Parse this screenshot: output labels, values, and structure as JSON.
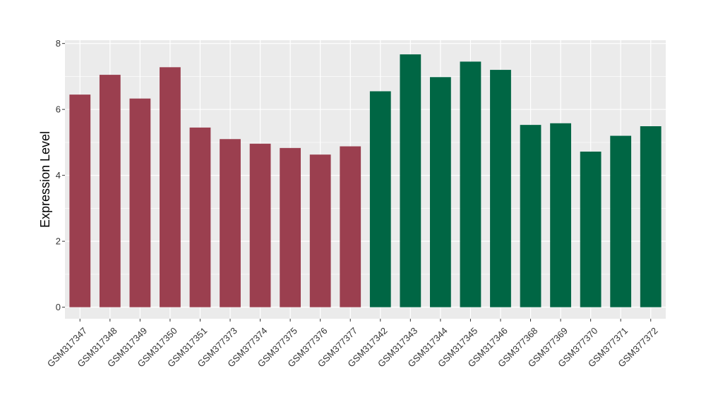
{
  "chart_data": {
    "type": "bar",
    "title": "",
    "xlabel": "",
    "ylabel": "Expression Level",
    "ylim": [
      -0.35,
      8.1
    ],
    "yticks": [
      0,
      2,
      4,
      6,
      8
    ],
    "ytick_labels": [
      "0",
      "2",
      "4",
      "6",
      "8"
    ],
    "grid": true,
    "legend": "none",
    "panel_background": "#ebebeb",
    "gridline_color": "#ffffff",
    "categories": [
      "GSM317347",
      "GSM317348",
      "GSM317349",
      "GSM317350",
      "GSM317351",
      "GSM377373",
      "GSM377374",
      "GSM377375",
      "GSM377376",
      "GSM377377",
      "GSM317342",
      "GSM317343",
      "GSM317344",
      "GSM317345",
      "GSM317346",
      "GSM377368",
      "GSM377369",
      "GSM377370",
      "GSM377371",
      "GSM377372"
    ],
    "values": [
      6.45,
      7.05,
      6.33,
      7.28,
      5.45,
      5.1,
      4.96,
      4.83,
      4.63,
      4.88,
      6.55,
      7.67,
      6.98,
      7.45,
      7.2,
      5.53,
      5.58,
      4.72,
      5.2,
      5.49
    ],
    "bar_colors": [
      "#9b3f4f",
      "#9b3f4f",
      "#9b3f4f",
      "#9b3f4f",
      "#9b3f4f",
      "#9b3f4f",
      "#9b3f4f",
      "#9b3f4f",
      "#9b3f4f",
      "#9b3f4f",
      "#006644",
      "#006644",
      "#006644",
      "#006644",
      "#006644",
      "#006644",
      "#006644",
      "#006644",
      "#006644",
      "#006644"
    ]
  }
}
